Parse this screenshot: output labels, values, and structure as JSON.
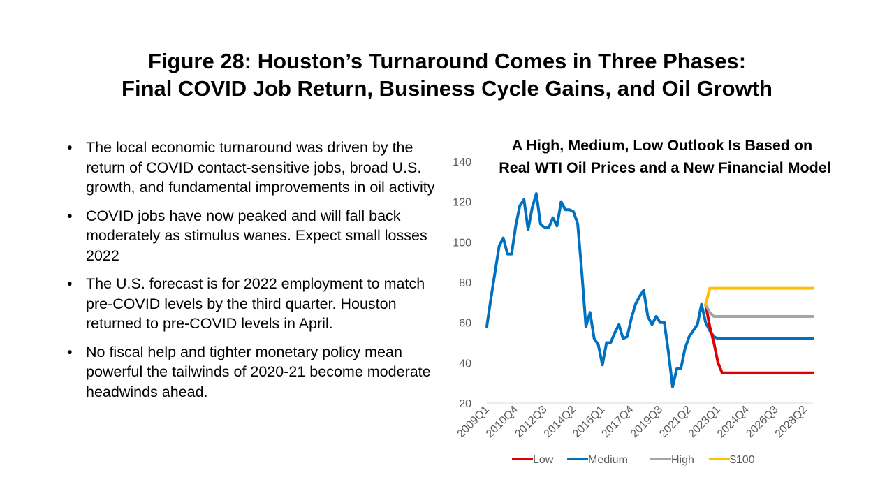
{
  "slide": {
    "title_line1": "Figure 28: Houston’s Turnaround Comes in Three Phases:",
    "title_line2": "Final COVID Job Return, Business Cycle Gains, and Oil Growth"
  },
  "bullets": [
    "The local economic turnaround was driven by the return of COVID contact-sensitive jobs, broad U.S. growth, and fundamental improvements in oil activity",
    "COVID jobs have now peaked and will fall back moderately as stimulus wanes.  Expect small losses 2022",
    "The U.S. forecast is for 2022 employment to match pre-COVID levels by the third quarter. Houston returned to pre-COVID levels in April.",
    "No fiscal help and tighter monetary policy mean powerful the tailwinds of 2020-21 become moderate headwinds ahead."
  ],
  "chart_data": {
    "type": "line",
    "title_line1": "A High, Medium, Low Outlook Is Based on",
    "title_line2": "Real WTI Oil Prices and a New Financial Model",
    "ylim": [
      20,
      140
    ],
    "yticks": [
      20,
      40,
      60,
      80,
      100,
      120,
      140
    ],
    "x_tick_labels": [
      "2009Q1",
      "2010Q4",
      "2012Q3",
      "2014Q2",
      "2016Q1",
      "2017Q4",
      "2019Q3",
      "2021Q2",
      "2023Q1",
      "2024Q4",
      "2026Q3",
      "2028Q2"
    ],
    "start_period": "2009Q1",
    "end_period": "2028Q4",
    "grid": false,
    "legend_position": "bottom",
    "series": [
      {
        "name": "Low",
        "color": "#E00000",
        "start_period": "2022Q2",
        "values": [
          69,
          58,
          50,
          40,
          35,
          35,
          35,
          35,
          35,
          35,
          35,
          35,
          35,
          35,
          35,
          35,
          35,
          35,
          35,
          35,
          35,
          35,
          35,
          35,
          35,
          35,
          35
        ]
      },
      {
        "name": "Medium",
        "color": "#0070C0",
        "start_period": "2009Q1",
        "values": [
          58,
          72,
          85,
          98,
          102,
          94,
          94,
          108,
          118,
          121,
          106,
          117,
          124,
          109,
          107,
          107,
          112,
          108,
          120,
          116,
          116,
          115,
          109,
          85,
          58,
          65,
          52,
          49,
          39,
          50,
          50,
          55,
          59,
          52,
          53,
          62,
          69,
          73,
          76,
          63,
          59,
          63,
          60,
          60,
          45,
          28,
          37,
          37,
          47,
          53,
          56,
          59,
          69,
          60,
          56,
          53,
          52,
          52,
          52,
          52,
          52,
          52,
          52,
          52,
          52,
          52,
          52,
          52,
          52,
          52,
          52,
          52,
          52,
          52,
          52,
          52,
          52,
          52,
          52,
          52
        ]
      },
      {
        "name": "High",
        "color": "#A5A5A5",
        "start_period": "2022Q2",
        "values": [
          69,
          65,
          63,
          63,
          63,
          63,
          63,
          63,
          63,
          63,
          63,
          63,
          63,
          63,
          63,
          63,
          63,
          63,
          63,
          63,
          63,
          63,
          63,
          63,
          63,
          63,
          63
        ]
      },
      {
        "name": "$100",
        "color": "#FFC000",
        "start_period": "2022Q2",
        "values": [
          69,
          77,
          77,
          77,
          77,
          77,
          77,
          77,
          77,
          77,
          77,
          77,
          77,
          77,
          77,
          77,
          77,
          77,
          77,
          77,
          77,
          77,
          77,
          77,
          77,
          77,
          77
        ]
      }
    ]
  }
}
